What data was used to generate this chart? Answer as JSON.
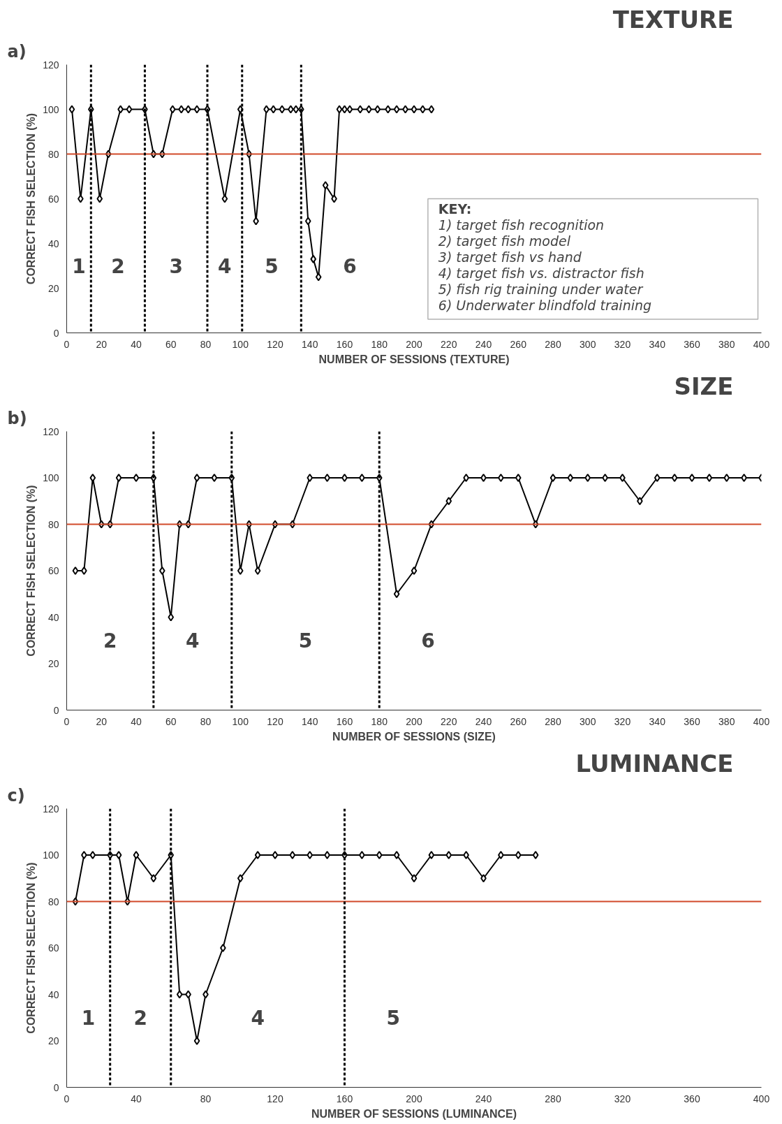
{
  "chart_data": [
    {
      "type": "line",
      "title": "TEXTURE",
      "subtitle": "a)",
      "xlabel": "NUMBER OF SESSIONS (TEXTURE)",
      "ylabel": "CORRECT FISH SELECTION (%)",
      "xlim": [
        0,
        400
      ],
      "ylim": [
        0,
        120
      ],
      "xticks": [
        0,
        20,
        40,
        60,
        80,
        100,
        120,
        140,
        160,
        180,
        200,
        220,
        240,
        260,
        280,
        300,
        320,
        340,
        360,
        380,
        400
      ],
      "yticks": [
        0,
        20,
        40,
        60,
        80,
        100,
        120
      ],
      "marker": "diamond",
      "line_style": "solid",
      "series": [
        {
          "color": "#000000",
          "x": [
            3,
            8,
            14,
            19,
            24,
            31,
            36,
            45,
            50,
            55,
            61,
            66,
            70,
            75,
            81,
            91,
            100,
            105,
            109,
            115,
            119,
            124,
            129,
            132,
            135,
            139,
            142,
            145,
            149,
            154,
            157,
            160,
            163,
            169,
            174,
            179,
            185,
            190,
            195,
            200,
            205,
            210
          ],
          "values": [
            100,
            60,
            100,
            60,
            80,
            100,
            100,
            100,
            80,
            80,
            100,
            100,
            100,
            100,
            100,
            60,
            100,
            80,
            50,
            100,
            100,
            100,
            100,
            100,
            100,
            50,
            33,
            25,
            66,
            60,
            100,
            100,
            100,
            100,
            100,
            100,
            100,
            100,
            100,
            100,
            100,
            100
          ]
        }
      ],
      "ref_lines": [
        {
          "axis": "y",
          "value": 80,
          "color": "#d24a2a",
          "line_style": "solid"
        },
        {
          "axis": "x",
          "value": 14,
          "color": "#000000",
          "line_style": "dashed"
        },
        {
          "axis": "x",
          "value": 45,
          "color": "#000000",
          "line_style": "dashed"
        },
        {
          "axis": "x",
          "value": 81,
          "color": "#000000",
          "line_style": "dashed"
        },
        {
          "axis": "x",
          "value": 101,
          "color": "#000000",
          "line_style": "dashed"
        },
        {
          "axis": "x",
          "value": 135,
          "color": "#000000",
          "line_style": "dashed"
        }
      ],
      "annotations": [
        "1",
        "2",
        "3",
        "4",
        "5",
        "6",
        "KEY:",
        "1)  target fish recognition",
        "2)  target fish model",
        "3)  target fish vs hand",
        "4)  target fish vs. distractor fish",
        "5)  fish rig training under water",
        "6)  Underwater blindfold training"
      ]
    },
    {
      "type": "line",
      "title": "SIZE",
      "subtitle": "b)",
      "xlabel": "NUMBER OF SESSIONS (SIZE)",
      "ylabel": "CORRECT FISH SELECTION (%)",
      "xlim": [
        0,
        400
      ],
      "ylim": [
        0,
        120
      ],
      "xticks": [
        0,
        20,
        40,
        60,
        80,
        100,
        120,
        140,
        160,
        180,
        200,
        220,
        240,
        260,
        280,
        300,
        320,
        340,
        360,
        380,
        400
      ],
      "yticks": [
        0,
        20,
        40,
        60,
        80,
        100,
        120
      ],
      "marker": "diamond",
      "line_style": "solid",
      "series": [
        {
          "color": "#000000",
          "x": [
            5,
            10,
            15,
            20,
            25,
            30,
            40,
            50,
            55,
            60,
            65,
            70,
            75,
            85,
            95,
            100,
            105,
            110,
            120,
            130,
            140,
            150,
            160,
            170,
            180,
            190,
            200,
            210,
            220,
            230,
            240,
            250,
            260,
            270,
            280,
            290,
            300,
            310,
            320,
            330,
            340,
            350,
            360,
            370,
            380,
            390,
            400
          ],
          "values": [
            60,
            60,
            100,
            80,
            80,
            100,
            100,
            100,
            60,
            40,
            80,
            80,
            100,
            100,
            100,
            60,
            80,
            60,
            80,
            80,
            100,
            100,
            100,
            100,
            100,
            50,
            60,
            80,
            90,
            100,
            100,
            100,
            100,
            80,
            100,
            100,
            100,
            100,
            100,
            90,
            100,
            100,
            100,
            100,
            100,
            100,
            100
          ]
        }
      ],
      "ref_lines": [
        {
          "axis": "y",
          "value": 80,
          "color": "#d24a2a",
          "line_style": "solid"
        },
        {
          "axis": "x",
          "value": 50,
          "color": "#000000",
          "line_style": "dashed"
        },
        {
          "axis": "x",
          "value": 95,
          "color": "#000000",
          "line_style": "dashed"
        },
        {
          "axis": "x",
          "value": 180,
          "color": "#000000",
          "line_style": "dashed"
        }
      ],
      "annotations": [
        "2",
        "4",
        "5",
        "6"
      ]
    },
    {
      "type": "line",
      "title": "LUMINANCE",
      "subtitle": "c)",
      "xlabel": "NUMBER OF SESSIONS (LUMINANCE)",
      "ylabel": "CORRECT FISH SELECTION (%)",
      "xlim": [
        0,
        400
      ],
      "ylim": [
        0,
        120
      ],
      "xticks": [
        0,
        40,
        80,
        120,
        160,
        200,
        240,
        280,
        320,
        360,
        400
      ],
      "yticks": [
        0,
        20,
        40,
        60,
        80,
        100,
        120
      ],
      "marker": "diamond",
      "line_style": "solid",
      "series": [
        {
          "color": "#000000",
          "x": [
            5,
            10,
            15,
            25,
            30,
            35,
            40,
            50,
            60,
            65,
            70,
            75,
            80,
            90,
            100,
            110,
            120,
            130,
            140,
            150,
            160,
            170,
            180,
            190,
            200,
            210,
            220,
            230,
            240,
            250,
            260,
            270
          ],
          "values": [
            80,
            100,
            100,
            100,
            100,
            80,
            100,
            90,
            100,
            40,
            40,
            20,
            40,
            60,
            90,
            100,
            100,
            100,
            100,
            100,
            100,
            100,
            100,
            100,
            90,
            100,
            100,
            100,
            90,
            100,
            100,
            100
          ]
        }
      ],
      "ref_lines": [
        {
          "axis": "y",
          "value": 80,
          "color": "#d24a2a",
          "line_style": "solid"
        },
        {
          "axis": "x",
          "value": 25,
          "color": "#000000",
          "line_style": "dashed"
        },
        {
          "axis": "x",
          "value": 60,
          "color": "#000000",
          "line_style": "dashed"
        },
        {
          "axis": "x",
          "value": 160,
          "color": "#000000",
          "line_style": "dashed"
        }
      ],
      "annotations": [
        "1",
        "2",
        "4",
        "5"
      ]
    }
  ]
}
